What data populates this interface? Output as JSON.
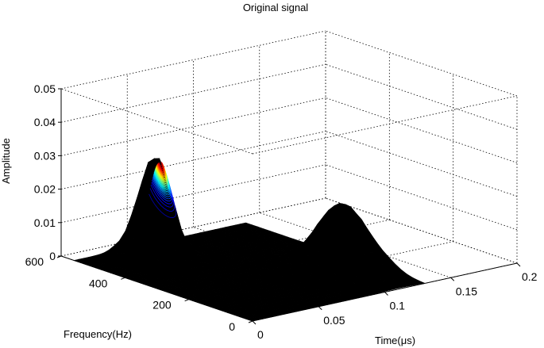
{
  "chart_data": {
    "type": "surface",
    "title": "Original signal",
    "xlabel": "Time(μs)",
    "ylabel": "Frequency(Hz)",
    "zlabel": "Amplitude",
    "xlim": [
      0,
      0.2
    ],
    "ylim": [
      0,
      600
    ],
    "zlim": [
      0,
      0.05
    ],
    "x_ticks": [
      "0",
      "0.05",
      "0.1",
      "0.15",
      "0.2"
    ],
    "y_ticks": [
      "0",
      "200",
      "400",
      "600"
    ],
    "z_ticks": [
      "0",
      "0.01",
      "0.02",
      "0.03",
      "0.04",
      "0.05"
    ],
    "grid": true,
    "surface_color": "#000000",
    "colormap": "jet",
    "peaks": [
      {
        "time": 0.04,
        "frequency": 470,
        "amplitude": 0.031
      },
      {
        "time": 0.11,
        "frequency": 175,
        "amplitude": 0.02
      }
    ]
  }
}
